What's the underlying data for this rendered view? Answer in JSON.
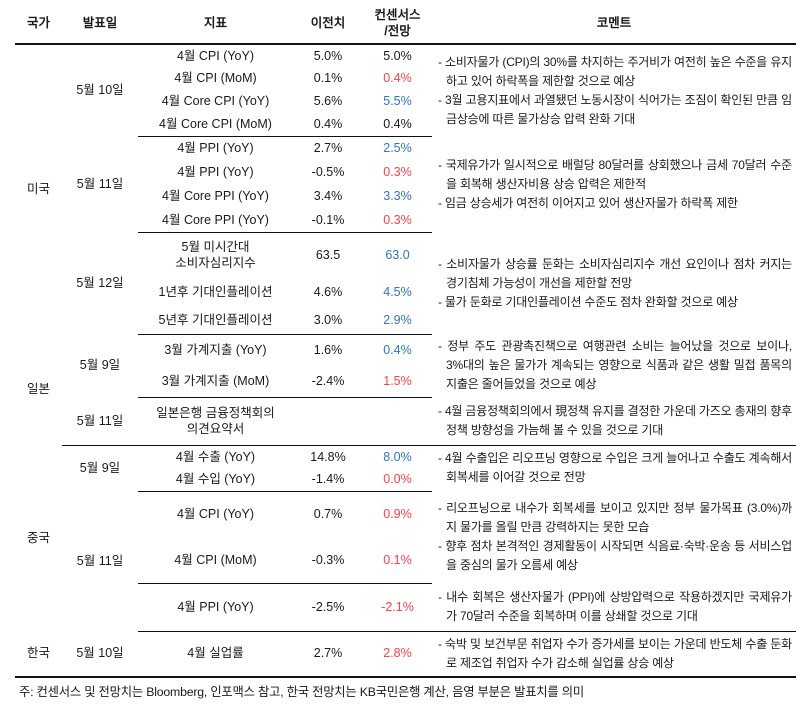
{
  "header": {
    "country": "국가",
    "date": "발표일",
    "indicator": "지표",
    "previous": "이전치",
    "consensus": "컨센서스\n/전망",
    "comment": "코멘트"
  },
  "colors": {
    "text": "#1a1a1a",
    "forecast_blue": "#2e75c6",
    "released_red": "#ff4049"
  },
  "sections": [
    {
      "country": "미국",
      "groups": [
        {
          "date": "5월 10일",
          "rows": [
            {
              "indicator": "4월 CPI (YoY)",
              "previous": "5.0%",
              "consensus": "5.0%",
              "consensus_color": "#1a1a1a"
            },
            {
              "indicator": "4월 CPI (MoM)",
              "previous": "0.1%",
              "consensus": "0.4%",
              "consensus_color": "#ff4049"
            },
            {
              "indicator": "4월 Core CPI (YoY)",
              "previous": "5.6%",
              "consensus": "5.5%",
              "consensus_color": "#2e75c6"
            },
            {
              "indicator": "4월 Core CPI (MoM)",
              "previous": "0.4%",
              "consensus": "0.4%",
              "consensus_color": "#1a1a1a"
            }
          ],
          "comment": [
            "- 소비자물가 (CPI)의 30%를 차지하는 주거비가 여전히 높은 수준을 유지하고 있어 하락폭을 제한할 것으로 예상",
            "- 3월 고용지표에서 과열됐던 노동시장이 식어가는 조짐이 확인된 만큼 임금상승에 따른 물가상승 압력 완화 기대"
          ]
        },
        {
          "date": "5월 11일",
          "rows": [
            {
              "indicator": "4월 PPI (YoY)",
              "previous": "2.7%",
              "consensus": "2.5%",
              "consensus_color": "#2e75c6"
            },
            {
              "indicator": "4월 PPI (YoY)",
              "previous": "-0.5%",
              "consensus": "0.3%",
              "consensus_color": "#ff4049"
            },
            {
              "indicator": "4월 Core PPI (YoY)",
              "previous": "3.4%",
              "consensus": "3.3%",
              "consensus_color": "#2e75c6"
            },
            {
              "indicator": "4월 Core PPI (YoY)",
              "previous": "-0.1%",
              "consensus": "0.3%",
              "consensus_color": "#ff4049"
            }
          ],
          "comment": [
            "- 국제유가가 일시적으로 배럴당 80달러를 상회했으나 금세 70달러 수준을 회복해 생산자비용 상승 압력은 제한적",
            "- 임금 상승세가 여전히 이어지고 있어 생산자물가 하락폭 제한"
          ]
        },
        {
          "date": "5월 12일",
          "rows": [
            {
              "indicator": "5월 미시간대\n소비자심리지수",
              "previous": "63.5",
              "consensus": "63.0",
              "consensus_color": "#2e75c6"
            },
            {
              "indicator": "1년후 기대인플레이션",
              "previous": "4.6%",
              "consensus": "4.5%",
              "consensus_color": "#2e75c6"
            },
            {
              "indicator": "5년후 기대인플레이션",
              "previous": "3.0%",
              "consensus": "2.9%",
              "consensus_color": "#2e75c6"
            }
          ],
          "comment": [
            "- 소비자물가 상승률 둔화는 소비자심리지수 개선 요인이나 점차 커지는 경기침체 가능성이 개선을 제한할 전망",
            "- 물가 둔화로 기대인플레이션 수준도 점차 완화할 것으로 예상"
          ]
        }
      ]
    },
    {
      "country": "일본",
      "groups": [
        {
          "date": "5월 9일",
          "rows": [
            {
              "indicator": "3월 가계지출 (YoY)",
              "previous": "1.6%",
              "consensus": "0.4%",
              "consensus_color": "#2e75c6"
            },
            {
              "indicator": "3월 가계지출 (MoM)",
              "previous": "-2.4%",
              "consensus": "1.5%",
              "consensus_color": "#ff4049"
            }
          ],
          "comment": [
            "- 정부 주도 관광촉진책으로 여행관련 소비는 늘어났을 것으로 보이나, 3%대의 높은 물가가 계속되는 영향으로 식품과 같은 생활 밀접 품목의 지출은 줄어들었을 것으로 예상"
          ]
        },
        {
          "date": "5월 11일",
          "rows": [
            {
              "indicator": "일본은행 금융정책회의\n의견요약서",
              "previous": "",
              "consensus": "",
              "consensus_color": "#1a1a1a"
            }
          ],
          "comment": [
            "- 4월 금융정책회의에서 現정책 유지를 결정한 가운데 가즈오 총재의 향후 정책 방향성을 가늠해 볼 수 있을 것으로 기대"
          ]
        }
      ]
    },
    {
      "country": "중국",
      "groups": [
        {
          "date": "5월 9일",
          "rows": [
            {
              "indicator": "4월 수출 (YoY)",
              "previous": "14.8%",
              "consensus": "8.0%",
              "consensus_color": "#2e75c6"
            },
            {
              "indicator": "4월 수입 (YoY)",
              "previous": "-1.4%",
              "consensus": "0.0%",
              "consensus_color": "#ff4049"
            }
          ],
          "comment": [
            "- 4월 수출입은 리오프닝 영향으로 수입은 크게 늘어나고 수출도 계속해서 회복세를 이어갈 것으로 전망"
          ]
        },
        {
          "date": "5월 11일",
          "rows": [
            {
              "indicator": "4월 CPI (YoY)",
              "previous": "0.7%",
              "consensus": "0.9%",
              "consensus_color": "#ff4049"
            },
            {
              "indicator": "4월 CPI (MoM)",
              "previous": "-0.3%",
              "consensus": "0.1%",
              "consensus_color": "#ff4049"
            },
            {
              "indicator": "4월 PPI (YoY)",
              "previous": "-2.5%",
              "consensus": "-2.1%",
              "consensus_color": "#ff4049"
            }
          ],
          "comment_cpi": [
            "- 리오프닝으로 내수가 회복세를 보이고 있지만 정부 물가목표 (3.0%)까지 물가를 올릴 만큼 강력하지는 못한 모습",
            "- 향후 점차 본격적인 경제활동이 시작되면 식음료·숙박·운송 등 서비스업을 중심의 물가 오름세 예상"
          ],
          "comment_ppi": [
            "- 내수 회복은 생산자물가 (PPI)에 상방압력으로 작용하겠지만 국제유가가 70달러 수준을 회복하며 이를 상쇄할 것으로 기대"
          ]
        }
      ]
    },
    {
      "country": "한국",
      "groups": [
        {
          "date": "5월 10일",
          "rows": [
            {
              "indicator": "4월 실업률",
              "previous": "2.7%",
              "consensus": "2.8%",
              "consensus_color": "#ff4049"
            }
          ],
          "comment": [
            "- 숙박 및 보건부문 취업자 수가 증가세를 보이는 가운데 반도체 수출 둔화로 제조업 취업자 수가 감소해 실업률 상승 예상"
          ]
        }
      ]
    }
  ],
  "footnote": "주: 컨센서스 및 전망치는 Bloomberg, 인포맥스 참고, 한국 전망치는 KB국민은행 계산, 음영 부분은 발표치를 의미"
}
